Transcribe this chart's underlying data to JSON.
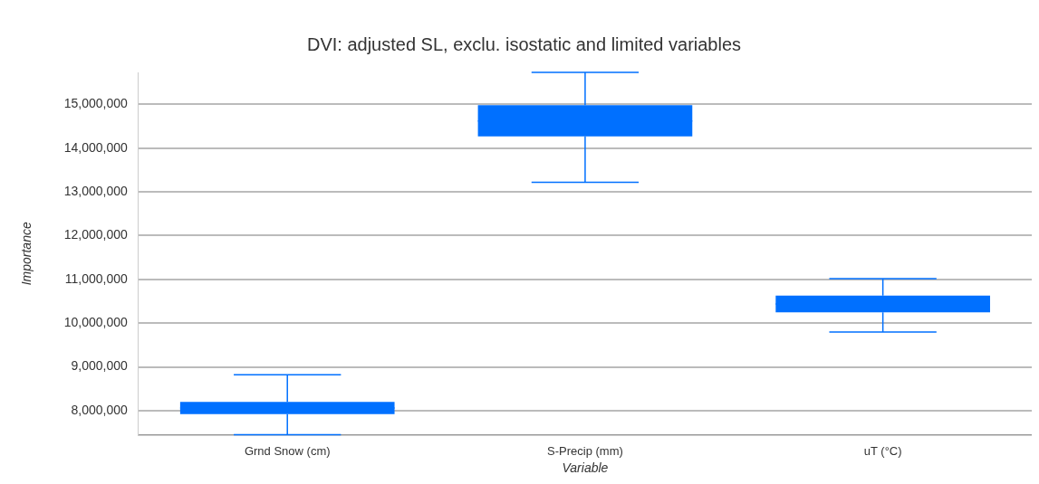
{
  "chart_data": {
    "type": "box",
    "title": "DVI: adjusted SL, exclu. isostatic and limited variables",
    "xlabel": "Variable",
    "ylabel": "Importance",
    "categories": [
      "Grnd Snow (cm)",
      "S-Precip (mm)",
      "uT (°C)"
    ],
    "color": "#0070ff",
    "boxes": [
      {
        "low": 7450000,
        "q1": 7920000,
        "median": 8060000,
        "q3": 8200000,
        "high": 8820000
      },
      {
        "low": 13220000,
        "q1": 14270000,
        "median": 14620000,
        "q3": 14980000,
        "high": 15730000
      },
      {
        "low": 9800000,
        "q1": 10250000,
        "median": 10440000,
        "q3": 10630000,
        "high": 11020000
      }
    ],
    "ylim": [
      7450000,
      15730000
    ],
    "yticks": [
      {
        "value": 8000000,
        "label": "8,000,000"
      },
      {
        "value": 9000000,
        "label": "9,000,000"
      },
      {
        "value": 10000000,
        "label": "10,000,000"
      },
      {
        "value": 11000000,
        "label": "11,000,000"
      },
      {
        "value": 12000000,
        "label": "12,000,000"
      },
      {
        "value": 13000000,
        "label": "13,000,000"
      },
      {
        "value": 14000000,
        "label": "14,000,000"
      },
      {
        "value": 15000000,
        "label": "15,000,000"
      }
    ],
    "grid": "y",
    "legend": false
  }
}
